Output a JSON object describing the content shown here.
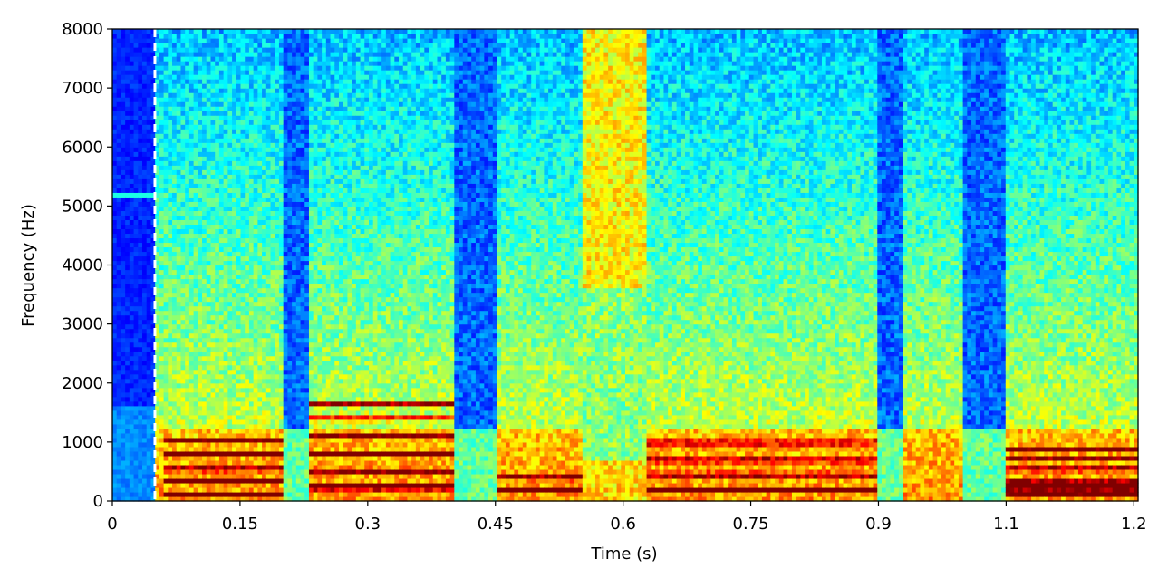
{
  "chart_data": {
    "type": "heatmap",
    "title": "",
    "xlabel": "Time (s)",
    "ylabel": "Frequency (Hz)",
    "xlim": [
      0,
      1.205
    ],
    "ylim": [
      0,
      8000
    ],
    "x_ticks": [
      0,
      0.15,
      0.3,
      0.45,
      0.6,
      0.75,
      0.9,
      1.05,
      1.2
    ],
    "x_tick_labels": [
      "0",
      "0.15",
      "0.3",
      "0.45",
      "0.6",
      "0.75",
      "0.9",
      "1.1",
      "1.2"
    ],
    "y_ticks": [
      0,
      1000,
      2000,
      3000,
      4000,
      5000,
      6000,
      7000,
      8000
    ],
    "y_tick_labels": [
      "0",
      "1000",
      "2000",
      "3000",
      "4000",
      "5000",
      "6000",
      "7000",
      "8000"
    ],
    "colormap": "jet",
    "marker": {
      "type": "dashed-vertical-line",
      "x": 0.05,
      "color": "#ffffff"
    },
    "segments": [
      {
        "start": 0.0,
        "end": 0.05,
        "type": "silence"
      },
      {
        "start": 0.05,
        "end": 0.2,
        "type": "voiced"
      },
      {
        "start": 0.2,
        "end": 0.23,
        "type": "gap"
      },
      {
        "start": 0.23,
        "end": 0.4,
        "type": "voiced"
      },
      {
        "start": 0.4,
        "end": 0.45,
        "type": "gap"
      },
      {
        "start": 0.45,
        "end": 0.55,
        "type": "voiced"
      },
      {
        "start": 0.55,
        "end": 0.63,
        "type": "fricative"
      },
      {
        "start": 0.63,
        "end": 0.9,
        "type": "voiced"
      },
      {
        "start": 0.9,
        "end": 0.93,
        "type": "gap"
      },
      {
        "start": 0.93,
        "end": 1.0,
        "type": "voiced"
      },
      {
        "start": 1.0,
        "end": 1.05,
        "type": "gap"
      },
      {
        "start": 1.05,
        "end": 1.205,
        "type": "voiced"
      }
    ],
    "harmonic_bands_hz": [
      {
        "start": 0.06,
        "end": 0.2,
        "freqs": [
          120,
          330,
          550,
          800,
          1050
        ]
      },
      {
        "start": 0.23,
        "end": 0.4,
        "freqs": [
          250,
          520,
          800,
          1100,
          1400,
          1650
        ]
      },
      {
        "start": 0.45,
        "end": 0.55,
        "freqs": [
          200,
          400
        ]
      },
      {
        "start": 0.63,
        "end": 0.9,
        "freqs": [
          200,
          450,
          700,
          1000
        ]
      },
      {
        "start": 1.05,
        "end": 1.205,
        "freqs": [
          150,
          300,
          550,
          750,
          900
        ]
      }
    ]
  }
}
